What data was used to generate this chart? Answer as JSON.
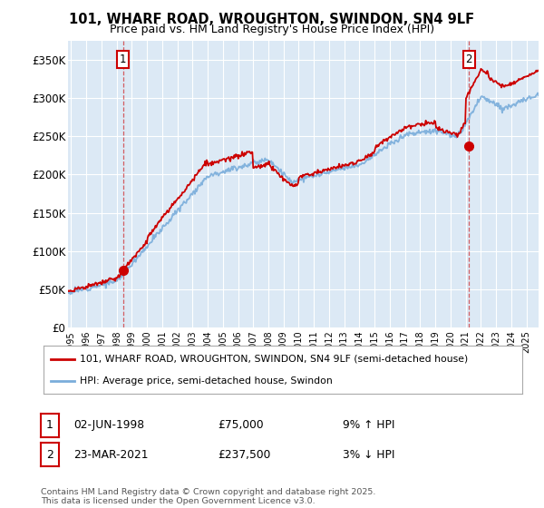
{
  "title_line1": "101, WHARF ROAD, WROUGHTON, SWINDON, SN4 9LF",
  "title_line2": "Price paid vs. HM Land Registry's House Price Index (HPI)",
  "ylabel_ticks": [
    "£0",
    "£50K",
    "£100K",
    "£150K",
    "£200K",
    "£250K",
    "£300K",
    "£350K"
  ],
  "ytick_values": [
    0,
    50000,
    100000,
    150000,
    200000,
    250000,
    300000,
    350000
  ],
  "ylim": [
    0,
    375000
  ],
  "xlim_start": 1994.8,
  "xlim_end": 2025.8,
  "background_color": "#dce9f5",
  "fig_bg_color": "#ffffff",
  "grid_color": "#ffffff",
  "red_line_color": "#cc0000",
  "blue_line_color": "#7aaddb",
  "purchase1_date": 1998.42,
  "purchase1_value": 75000,
  "purchase2_date": 2021.22,
  "purchase2_value": 237500,
  "legend_entry1": "101, WHARF ROAD, WROUGHTON, SWINDON, SN4 9LF (semi-detached house)",
  "legend_entry2": "HPI: Average price, semi-detached house, Swindon",
  "ann1_date": "02-JUN-1998",
  "ann1_price": "£75,000",
  "ann1_hpi": "9% ↑ HPI",
  "ann2_date": "23-MAR-2021",
  "ann2_price": "£237,500",
  "ann2_hpi": "3% ↓ HPI",
  "footer": "Contains HM Land Registry data © Crown copyright and database right 2025.\nThis data is licensed under the Open Government Licence v3.0.",
  "xtick_years": [
    1995,
    1996,
    1997,
    1998,
    1999,
    2000,
    2001,
    2002,
    2003,
    2004,
    2005,
    2006,
    2007,
    2008,
    2009,
    2010,
    2011,
    2012,
    2013,
    2014,
    2015,
    2016,
    2017,
    2018,
    2019,
    2020,
    2021,
    2022,
    2023,
    2024,
    2025
  ]
}
